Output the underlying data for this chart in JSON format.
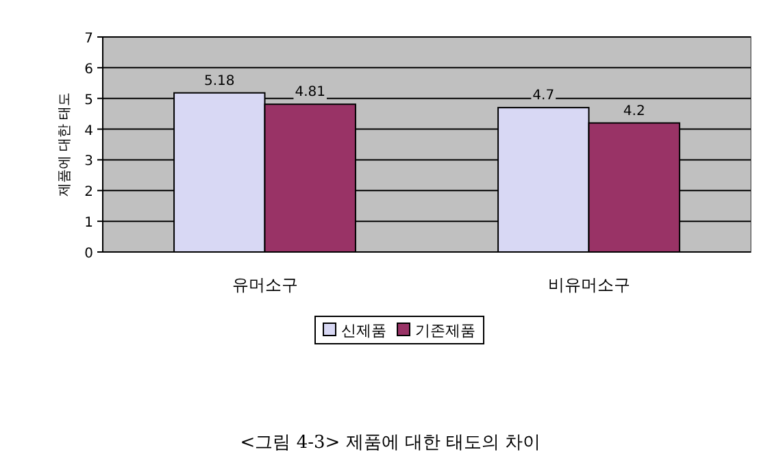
{
  "chart_data": {
    "type": "bar",
    "ylabel": "제품에 대한 태도",
    "categories": [
      "유머소구",
      "비유머소구"
    ],
    "series": [
      {
        "name": "신제품",
        "color": "#d8d8f4",
        "values": [
          5.18,
          4.7
        ]
      },
      {
        "name": "기존제품",
        "color": "#993366",
        "values": [
          4.81,
          4.2
        ]
      }
    ],
    "ylim": [
      0,
      7
    ],
    "yticks": [
      0,
      1,
      2,
      3,
      4,
      5,
      6,
      7
    ],
    "grid": "y",
    "data_labels": true,
    "legend": "bottom",
    "annotations": [
      "<그림 4-3> 제품에 대한 태도의 차이"
    ]
  }
}
